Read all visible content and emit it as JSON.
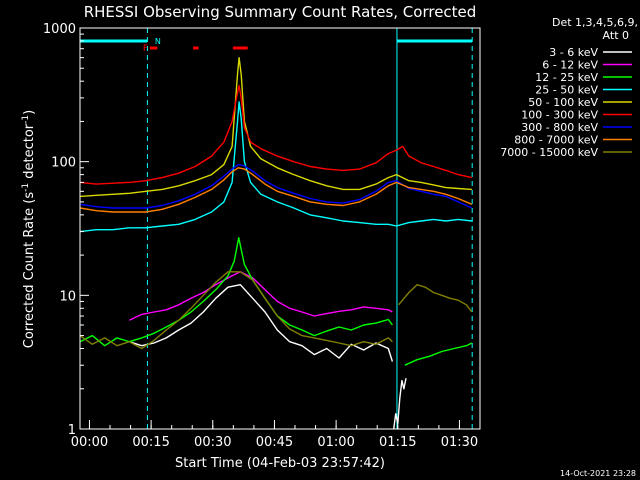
{
  "chart_data": {
    "type": "line",
    "title": "RHESSI Observing Summary Count Rates, Corrected",
    "xlabel": "Start Time (04-Feb-03 23:57:42)",
    "ylabel": "Corrected Count Rate (s",
    "ylabel_sup1": "-1",
    "ylabel_mid": " detector",
    "ylabel_sup2": "-1",
    "ylabel_end": ")",
    "x_unit": "minutes after 23:57:42",
    "xlim": [
      0,
      97.3
    ],
    "ylim": [
      1,
      1000
    ],
    "yscale": "log",
    "x_ticks": [
      {
        "label": "00:00",
        "value": 2.3
      },
      {
        "label": "00:15",
        "value": 17.3
      },
      {
        "label": "00:30",
        "value": 32.3
      },
      {
        "label": "00:45",
        "value": 47.3
      },
      {
        "label": "01:00",
        "value": 62.3
      },
      {
        "label": "01:15",
        "value": 77.3
      },
      {
        "label": "01:30",
        "value": 92.3
      }
    ],
    "y_ticks": [
      {
        "label": "1",
        "value": 1
      },
      {
        "label": "10",
        "value": 10
      },
      {
        "label": "100",
        "value": 100
      },
      {
        "label": "1000",
        "value": 1000
      }
    ],
    "legend_header": "Det 1,3,4,5,6,9,",
    "legend_subheader": "Att 0",
    "legend_position": "right, outside plot",
    "timestamp": "14-Oct-2021 23:28",
    "flags": {
      "night_bars": [
        [
          0,
          16.3
        ],
        [
          77.1,
          95.4
        ]
      ],
      "night_color": "#00ffff",
      "n_label": "N",
      "n_label_x": 18.2,
      "f_label": "F",
      "f_label_x": 15.3,
      "flare_bars": [
        [
          17.0,
          18.8
        ],
        [
          27.5,
          28.8
        ],
        [
          37.2,
          40.8
        ]
      ],
      "flare_color": "#ff0000",
      "dashed_lines": [
        16.4,
        95.4
      ],
      "solid_lines": [
        77.1
      ]
    },
    "series": [
      {
        "name": "3 - 6 keV",
        "color": "#ffffff",
        "x": [
          12,
          15,
          18,
          21,
          24,
          27,
          30,
          33,
          36,
          39,
          42,
          45,
          48,
          51,
          54,
          57,
          60,
          63,
          66,
          69,
          72,
          75,
          76
        ],
        "y": [
          4.5,
          4.2,
          4.4,
          4.8,
          5.5,
          6.2,
          7.5,
          9.5,
          11.5,
          12,
          9.5,
          7.5,
          5.5,
          4.5,
          4.2,
          3.6,
          4.0,
          3.4,
          4.3,
          3.9,
          4.4,
          4.0,
          3.2
        ]
      },
      {
        "name": "6 - 12 keV",
        "color": "#ff00ff",
        "x": [
          12,
          15,
          18,
          21,
          24,
          27,
          30,
          33,
          36,
          39,
          42,
          45,
          48,
          51,
          54,
          57,
          60,
          63,
          66,
          69,
          72,
          75,
          76
        ],
        "y": [
          6.5,
          7.2,
          7.5,
          7.8,
          8.5,
          9.5,
          10.5,
          12,
          13.5,
          15,
          13.5,
          11,
          9.0,
          8.0,
          7.5,
          7.0,
          7.3,
          7.6,
          7.8,
          8.2,
          8.0,
          7.8,
          7.5
        ]
      },
      {
        "name": "12 - 25 keV",
        "color": "#00ff00",
        "x": [
          0,
          3,
          6,
          9,
          12,
          15,
          18,
          21,
          24,
          27,
          30,
          33,
          36,
          37.5,
          38.6,
          40,
          42,
          45,
          48,
          51,
          54,
          57,
          60,
          63,
          66,
          69,
          72,
          75,
          76
        ],
        "y": [
          4.5,
          5.0,
          4.2,
          4.8,
          4.5,
          4.8,
          5.2,
          5.8,
          6.5,
          7.5,
          9.0,
          11,
          14,
          18,
          27,
          17,
          13,
          9.5,
          7.0,
          6.0,
          5.5,
          5.0,
          5.4,
          5.8,
          5.5,
          6.0,
          6.2,
          6.6,
          6.0
        ]
      },
      {
        "name": "25 - 50 keV",
        "color": "#00ffff",
        "x": [
          0,
          4,
          8,
          12,
          16,
          20,
          24,
          28,
          32,
          35,
          37,
          38.3,
          38.7,
          39.2,
          40,
          41.5,
          44,
          48,
          52,
          56,
          60,
          64,
          68,
          72,
          75,
          77,
          80,
          83,
          86,
          89,
          92,
          95.3
        ],
        "y": [
          30,
          31,
          31,
          32,
          32,
          33,
          34,
          37,
          42,
          50,
          70,
          200,
          280,
          210,
          100,
          70,
          57,
          50,
          45,
          40,
          38,
          36,
          35,
          34,
          34,
          33,
          35,
          36,
          37,
          36,
          37,
          36
        ]
      },
      {
        "name": "50 - 100 keV",
        "color": "#d8d800",
        "x": [
          0,
          4,
          8,
          12,
          16,
          20,
          24,
          28,
          32,
          35,
          37,
          38.3,
          38.7,
          39.2,
          40,
          41.5,
          44,
          48,
          52,
          56,
          60,
          64,
          68,
          72,
          75,
          77,
          80,
          83,
          86,
          89,
          92,
          95.3
        ],
        "y": [
          55,
          56,
          57,
          58,
          60,
          62,
          66,
          72,
          80,
          95,
          130,
          450,
          600,
          450,
          200,
          130,
          105,
          90,
          80,
          72,
          66,
          62,
          62,
          68,
          76,
          80,
          72,
          70,
          67,
          64,
          63,
          62
        ]
      },
      {
        "name": "100 - 300 keV",
        "color": "#ff0000",
        "x": [
          0,
          4,
          8,
          12,
          16,
          20,
          24,
          28,
          32,
          35,
          37,
          38.3,
          38.7,
          39.2,
          40,
          41.5,
          44,
          48,
          52,
          56,
          60,
          64,
          68,
          72,
          75,
          77,
          78.5,
          80,
          83,
          86,
          89,
          92,
          95.3
        ],
        "y": [
          70,
          68,
          69,
          70,
          72,
          76,
          82,
          92,
          110,
          140,
          200,
          330,
          370,
          300,
          180,
          140,
          125,
          110,
          100,
          92,
          88,
          86,
          88,
          98,
          115,
          122,
          130,
          110,
          98,
          92,
          86,
          80,
          76
        ]
      },
      {
        "name": "300 - 800 keV",
        "color": "#0000ff",
        "x": [
          0,
          4,
          8,
          12,
          16,
          20,
          24,
          28,
          32,
          35,
          37,
          38.5,
          40,
          42,
          45,
          48,
          52,
          56,
          60,
          64,
          68,
          72,
          75,
          77,
          80,
          83,
          86,
          89,
          92,
          95.3
        ],
        "y": [
          48,
          46,
          45,
          45,
          45,
          47,
          51,
          57,
          66,
          78,
          88,
          95,
          93,
          85,
          72,
          64,
          58,
          53,
          50,
          49,
          52,
          60,
          70,
          72,
          63,
          60,
          57,
          55,
          50,
          45
        ]
      },
      {
        "name": "800 - 7000 keV",
        "color": "#ff8000",
        "x": [
          0,
          4,
          8,
          12,
          16,
          20,
          24,
          28,
          32,
          35,
          37,
          38.5,
          40,
          42,
          45,
          48,
          52,
          56,
          60,
          64,
          68,
          72,
          75,
          77,
          80,
          83,
          86,
          89,
          92,
          95.3
        ],
        "y": [
          45,
          43,
          42,
          42,
          42,
          44,
          48,
          54,
          62,
          73,
          84,
          90,
          88,
          80,
          68,
          60,
          55,
          50,
          48,
          47,
          50,
          57,
          66,
          70,
          64,
          62,
          60,
          57,
          53,
          48
        ]
      },
      {
        "name": "7000 - 15000 keV",
        "color": "#808000",
        "x": [
          0,
          3,
          6,
          9,
          12,
          15,
          18,
          21,
          24,
          27,
          30,
          33,
          36,
          39,
          42,
          45,
          48,
          51,
          54,
          57,
          60,
          63,
          66,
          69,
          72,
          75,
          76
        ],
        "y": [
          5.0,
          4.3,
          4.8,
          4.2,
          4.5,
          4.0,
          4.6,
          5.5,
          6.5,
          8.0,
          10,
          12.5,
          15,
          15,
          13,
          9.5,
          7.0,
          5.6,
          5.0,
          4.8,
          4.6,
          4.4,
          4.2,
          4.5,
          4.3,
          4.8,
          4.5
        ]
      },
      {
        "name": "7000 - 15000 keV",
        "color": "#808000",
        "x": [
          77.5,
          80,
          82,
          84,
          86,
          88,
          90,
          92,
          94,
          95.3
        ],
        "y": [
          8.5,
          10.5,
          12,
          11.5,
          10.5,
          10,
          9.5,
          9.2,
          8.5,
          7.5
        ]
      },
      {
        "name": "12 - 25 keV",
        "color": "#00ff00",
        "x": [
          79,
          82,
          85,
          88,
          91,
          94,
          95.3
        ],
        "y": [
          3.0,
          3.3,
          3.5,
          3.8,
          4.0,
          4.2,
          4.4
        ]
      },
      {
        "name": "3 - 6 keV",
        "color": "#ffffff",
        "x": [
          76.3,
          76.8,
          77.3,
          77.8,
          78.3,
          78.8,
          79.3
        ],
        "y": [
          1.0,
          1.3,
          1.1,
          1.7,
          2.3,
          2.0,
          2.4
        ]
      }
    ]
  }
}
